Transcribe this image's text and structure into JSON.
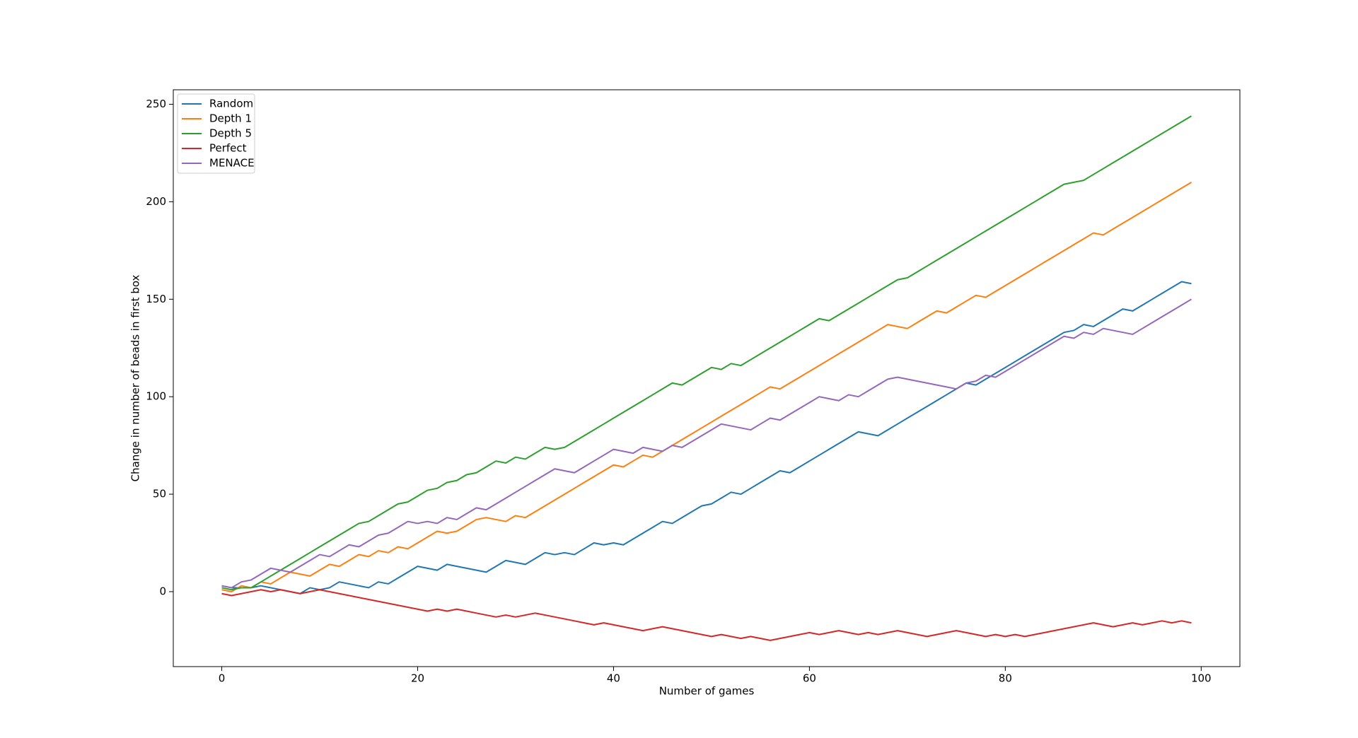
{
  "chart_data": {
    "type": "line",
    "xlabel": "Number of games",
    "ylabel": "Change in number of beads in first box",
    "x": [
      0,
      1,
      2,
      3,
      4,
      5,
      6,
      7,
      8,
      9,
      10,
      11,
      12,
      13,
      14,
      15,
      16,
      17,
      18,
      19,
      20,
      21,
      22,
      23,
      24,
      25,
      26,
      27,
      28,
      29,
      30,
      31,
      32,
      33,
      34,
      35,
      36,
      37,
      38,
      39,
      40,
      41,
      42,
      43,
      44,
      45,
      46,
      47,
      48,
      49,
      50,
      51,
      52,
      53,
      54,
      55,
      56,
      57,
      58,
      59,
      60,
      61,
      62,
      63,
      64,
      65,
      66,
      67,
      68,
      69,
      70,
      71,
      72,
      73,
      74,
      75,
      76,
      77,
      78,
      79,
      80,
      81,
      82,
      83,
      84,
      85,
      86,
      87,
      88,
      89,
      90,
      91,
      92,
      93,
      94,
      95,
      96,
      97,
      98,
      99
    ],
    "series": [
      {
        "name": "Random",
        "color": "#1f77b4",
        "values": [
          3,
          2,
          2,
          2,
          3,
          2,
          1,
          0,
          -1,
          2,
          1,
          2,
          5,
          4,
          3,
          2,
          5,
          4,
          7,
          10,
          13,
          12,
          11,
          14,
          13,
          12,
          11,
          10,
          13,
          16,
          15,
          14,
          17,
          20,
          19,
          20,
          19,
          22,
          25,
          24,
          25,
          24,
          27,
          30,
          33,
          36,
          35,
          38,
          41,
          44,
          45,
          48,
          51,
          50,
          53,
          56,
          59,
          62,
          61,
          64,
          67,
          70,
          73,
          76,
          79,
          82,
          81,
          80,
          83,
          86,
          89,
          92,
          95,
          98,
          101,
          104,
          107,
          106,
          109,
          112,
          115,
          118,
          121,
          124,
          127,
          130,
          133,
          134,
          137,
          136,
          139,
          142,
          145,
          144,
          147,
          150,
          153,
          156,
          159,
          158
        ]
      },
      {
        "name": "Depth 1",
        "color": "#ff7f0e",
        "values": [
          1,
          0,
          3,
          2,
          5,
          4,
          7,
          10,
          9,
          8,
          11,
          14,
          13,
          16,
          19,
          18,
          21,
          20,
          23,
          22,
          25,
          28,
          31,
          30,
          31,
          34,
          37,
          38,
          37,
          36,
          39,
          38,
          41,
          44,
          47,
          50,
          53,
          56,
          59,
          62,
          65,
          64,
          67,
          70,
          69,
          72,
          75,
          78,
          81,
          84,
          87,
          90,
          93,
          96,
          99,
          102,
          105,
          104,
          107,
          110,
          113,
          116,
          119,
          122,
          125,
          128,
          131,
          134,
          137,
          136,
          135,
          138,
          141,
          144,
          143,
          146,
          149,
          152,
          151,
          154,
          157,
          160,
          163,
          166,
          169,
          172,
          175,
          178,
          181,
          184,
          183,
          186,
          189,
          192,
          195,
          198,
          201,
          204,
          207,
          210
        ]
      },
      {
        "name": "Depth 5",
        "color": "#2ca02c",
        "values": [
          2,
          1,
          2,
          2,
          5,
          8,
          11,
          14,
          17,
          20,
          23,
          26,
          29,
          32,
          35,
          36,
          39,
          42,
          45,
          46,
          49,
          52,
          53,
          56,
          57,
          60,
          61,
          64,
          67,
          66,
          69,
          68,
          71,
          74,
          73,
          74,
          77,
          80,
          83,
          86,
          89,
          92,
          95,
          98,
          101,
          104,
          107,
          106,
          109,
          112,
          115,
          114,
          117,
          116,
          119,
          122,
          125,
          128,
          131,
          134,
          137,
          140,
          139,
          142,
          145,
          148,
          151,
          154,
          157,
          160,
          161,
          164,
          167,
          170,
          173,
          176,
          179,
          182,
          185,
          188,
          191,
          194,
          197,
          200,
          203,
          206,
          209,
          210,
          211,
          214,
          217,
          220,
          223,
          226,
          229,
          232,
          235,
          238,
          241,
          244
        ]
      },
      {
        "name": "Perfect",
        "color": "#d62728",
        "values": [
          -1,
          -2,
          -1,
          0,
          1,
          0,
          1,
          0,
          -1,
          0,
          1,
          0,
          -1,
          -2,
          -3,
          -4,
          -5,
          -6,
          -7,
          -8,
          -9,
          -10,
          -9,
          -10,
          -9,
          -10,
          -11,
          -12,
          -13,
          -12,
          -13,
          -12,
          -11,
          -12,
          -13,
          -14,
          -15,
          -16,
          -17,
          -16,
          -17,
          -18,
          -19,
          -20,
          -19,
          -18,
          -19,
          -20,
          -21,
          -22,
          -23,
          -22,
          -23,
          -24,
          -23,
          -24,
          -25,
          -24,
          -23,
          -22,
          -21,
          -22,
          -21,
          -20,
          -21,
          -22,
          -21,
          -22,
          -21,
          -20,
          -21,
          -22,
          -23,
          -22,
          -21,
          -20,
          -21,
          -22,
          -23,
          -22,
          -23,
          -22,
          -23,
          -22,
          -21,
          -20,
          -19,
          -18,
          -17,
          -16,
          -17,
          -18,
          -17,
          -16,
          -17,
          -16,
          -15,
          -16,
          -15,
          -16
        ]
      },
      {
        "name": "MENACE",
        "color": "#9467bd",
        "values": [
          3,
          2,
          5,
          6,
          9,
          12,
          11,
          10,
          13,
          16,
          19,
          18,
          21,
          24,
          23,
          26,
          29,
          30,
          33,
          36,
          35,
          36,
          35,
          38,
          37,
          40,
          43,
          42,
          45,
          48,
          51,
          54,
          57,
          60,
          63,
          62,
          61,
          64,
          67,
          70,
          73,
          72,
          71,
          74,
          73,
          72,
          75,
          74,
          77,
          80,
          83,
          86,
          85,
          84,
          83,
          86,
          89,
          88,
          91,
          94,
          97,
          100,
          99,
          98,
          101,
          100,
          103,
          106,
          109,
          110,
          109,
          108,
          107,
          106,
          105,
          104,
          107,
          108,
          111,
          110,
          113,
          116,
          119,
          122,
          125,
          128,
          131,
          130,
          133,
          132,
          135,
          134,
          133,
          132,
          135,
          138,
          141,
          144,
          147,
          150
        ]
      }
    ],
    "xlim": [
      -4.95,
      103.95
    ],
    "ylim": [
      -38.45,
      257.45
    ],
    "xticks": [
      0,
      20,
      40,
      60,
      80,
      100
    ],
    "yticks": [
      0,
      50,
      100,
      150,
      200,
      250
    ],
    "legend": "upper left"
  }
}
